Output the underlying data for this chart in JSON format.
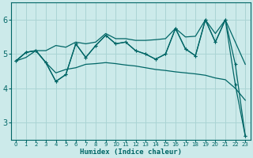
{
  "x": [
    0,
    1,
    2,
    3,
    4,
    5,
    6,
    7,
    8,
    9,
    10,
    11,
    12,
    13,
    14,
    15,
    16,
    17,
    18,
    19,
    20,
    21,
    22,
    23
  ],
  "line_zigzag1": [
    4.8,
    5.05,
    5.1,
    4.75,
    4.2,
    4.4,
    5.3,
    4.9,
    5.25,
    5.55,
    5.3,
    5.35,
    5.1,
    5.0,
    4.85,
    5.0,
    5.75,
    5.15,
    4.95,
    6.0,
    5.35,
    6.0,
    4.7,
    2.6
  ],
  "line_zigzag2": [
    4.8,
    5.05,
    5.1,
    4.75,
    4.2,
    4.4,
    5.3,
    4.9,
    5.25,
    5.55,
    5.3,
    5.35,
    5.1,
    5.0,
    4.85,
    5.0,
    5.75,
    5.15,
    4.95,
    6.0,
    5.35,
    6.0,
    4.1,
    2.6
  ],
  "line_upper": [
    4.8,
    5.05,
    5.1,
    5.1,
    5.25,
    5.2,
    5.35,
    5.3,
    5.35,
    5.6,
    5.45,
    5.45,
    5.4,
    5.4,
    5.42,
    5.45,
    5.75,
    5.5,
    5.52,
    6.0,
    5.6,
    6.0,
    5.35,
    4.7
  ],
  "line_lower": [
    4.8,
    4.9,
    5.1,
    4.75,
    4.45,
    4.55,
    4.6,
    4.7,
    4.72,
    4.75,
    4.72,
    4.68,
    4.65,
    4.6,
    4.55,
    4.52,
    4.48,
    4.45,
    4.42,
    4.38,
    4.3,
    4.25,
    4.0,
    3.65
  ],
  "color": "#006666",
  "bg_color": "#cceaea",
  "grid_color": "#aad4d4",
  "xlabel": "Humidex (Indice chaleur)",
  "ylim": [
    2.5,
    6.5
  ],
  "yticks": [
    3,
    4,
    5,
    6
  ],
  "xlim": [
    -0.5,
    23.5
  ]
}
